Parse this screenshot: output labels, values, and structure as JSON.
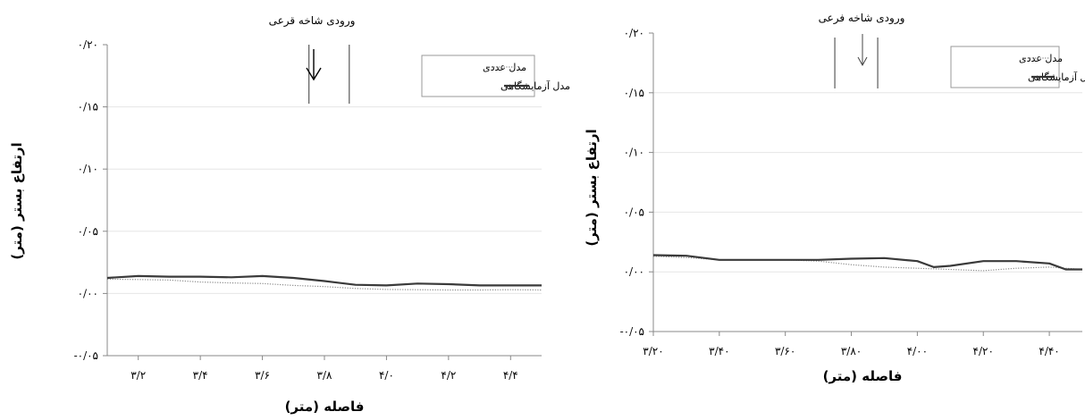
{
  "chart_data": [
    {
      "type": "line",
      "annotation": "ورودی شاخه قرعی",
      "xlabel": "فاصله (متر)",
      "ylabel": "ارتفاع بستر (متر)",
      "xlim": [
        3.1,
        4.5
      ],
      "ylim": [
        -0.05,
        0.2
      ],
      "x_ticks": [
        3.2,
        3.4,
        3.6,
        3.8,
        4.0,
        4.2,
        4.4
      ],
      "x_tick_labels": [
        "۳/۲",
        "۳/۴",
        "۳/۶",
        "۳/۸",
        "۴/۰",
        "۴/۲",
        "۴/۴"
      ],
      "y_ticks": [
        0.2,
        0.15,
        0.1,
        0.05,
        0.0,
        -0.05
      ],
      "y_tick_labels": [
        "۰/۲۰",
        "۰/۱۵",
        "۰/۱۰",
        "۰/۰۵",
        "۰/۰۰",
        "-۰/۰۵"
      ],
      "branch_x": [
        3.75,
        3.88
      ],
      "legend_position": "top-right",
      "series": [
        {
          "name": "مدل عددی",
          "style": "dotted",
          "x": [
            3.1,
            3.2,
            3.3,
            3.4,
            3.5,
            3.6,
            3.7,
            3.8,
            3.9,
            4.0,
            4.1,
            4.2,
            4.3,
            4.4,
            4.5
          ],
          "y": [
            0.0115,
            0.0112,
            0.0108,
            0.0092,
            0.0085,
            0.008,
            0.0065,
            0.0055,
            0.004,
            0.0032,
            0.003,
            0.0028,
            0.0028,
            0.003,
            0.0028
          ]
        },
        {
          "name": "مدل آزمایشگاهی",
          "style": "solid",
          "x": [
            3.1,
            3.2,
            3.3,
            3.4,
            3.5,
            3.6,
            3.7,
            3.8,
            3.9,
            4.0,
            4.1,
            4.2,
            4.3,
            4.4,
            4.5
          ],
          "y": [
            0.0125,
            0.014,
            0.0135,
            0.0135,
            0.013,
            0.014,
            0.0125,
            0.01,
            0.007,
            0.0065,
            0.008,
            0.0075,
            0.0065,
            0.0065,
            0.0065
          ]
        }
      ]
    },
    {
      "type": "line",
      "annotation": "ورودی شاخه فرعی",
      "xlabel": "فاصله (متر)",
      "ylabel": "ارتفاع بستر (متر)",
      "xlim": [
        3.2,
        4.5
      ],
      "ylim": [
        -0.05,
        0.2
      ],
      "x_ticks": [
        3.2,
        3.4,
        3.6,
        3.8,
        4.0,
        4.2,
        4.4
      ],
      "x_tick_labels": [
        "۳/۲۰",
        "۳/۴۰",
        "۳/۶۰",
        "۳/۸۰",
        "۴/۰۰",
        "۴/۲۰",
        "۴/۴۰"
      ],
      "y_ticks": [
        0.2,
        0.15,
        0.1,
        0.05,
        0.0,
        -0.05
      ],
      "y_tick_labels": [
        "۰/۲۰",
        "۰/۱۵",
        "۰/۱۰",
        "۰/۰۵",
        "۰/۰۰",
        "-۰/۰۵"
      ],
      "branch_x": [
        3.75,
        3.88
      ],
      "legend_position": "top-right",
      "series": [
        {
          "name": "مدل عددی",
          "style": "dotted",
          "x": [
            3.2,
            3.3,
            3.4,
            3.5,
            3.6,
            3.7,
            3.8,
            3.9,
            4.0,
            4.1,
            4.2,
            4.3,
            4.4,
            4.5
          ],
          "y": [
            0.013,
            0.012,
            0.01,
            0.01,
            0.01,
            0.009,
            0.006,
            0.004,
            0.003,
            0.002,
            0.001,
            0.003,
            0.004,
            0.002
          ]
        },
        {
          "name": "مدل آزمایشگاهی",
          "style": "solid",
          "x": [
            3.2,
            3.3,
            3.4,
            3.5,
            3.6,
            3.7,
            3.8,
            3.9,
            4.0,
            4.05,
            4.1,
            4.2,
            4.3,
            4.4,
            4.45,
            4.5
          ],
          "y": [
            0.014,
            0.0135,
            0.01,
            0.01,
            0.01,
            0.01,
            0.011,
            0.0115,
            0.009,
            0.004,
            0.005,
            0.009,
            0.009,
            0.007,
            0.002,
            0.002
          ]
        }
      ]
    }
  ]
}
